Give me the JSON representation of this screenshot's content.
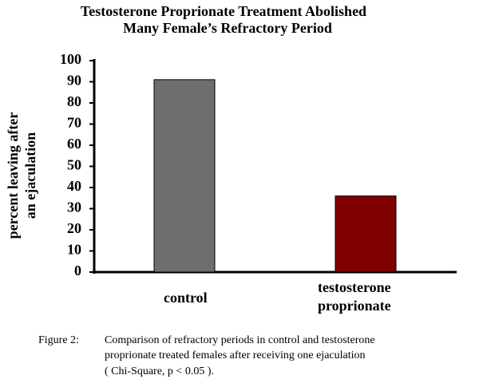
{
  "chart_data": {
    "type": "bar",
    "title": [
      "Testosterone Proprionate Treatment Abolished",
      "Many Female’s Refractory Period"
    ],
    "ylabel": [
      "percent leaving after",
      "an ejaculation"
    ],
    "categories": [
      "control",
      "testosterone proprionate"
    ],
    "series": [
      {
        "colors": [
          "#6e6e6e",
          "#800000"
        ],
        "values": [
          91,
          36
        ]
      }
    ],
    "ylim": [
      0,
      100
    ],
    "yticks": [
      0,
      10,
      20,
      30,
      40,
      50,
      60,
      70,
      80,
      90,
      100
    ],
    "caption_label": "Figure 2:",
    "caption": [
      "Comparison of refractory periods in control and testosterone",
      "proprionate treated females after receiving one ejaculation",
      "( Chi-Square, p < 0.05 )."
    ]
  }
}
